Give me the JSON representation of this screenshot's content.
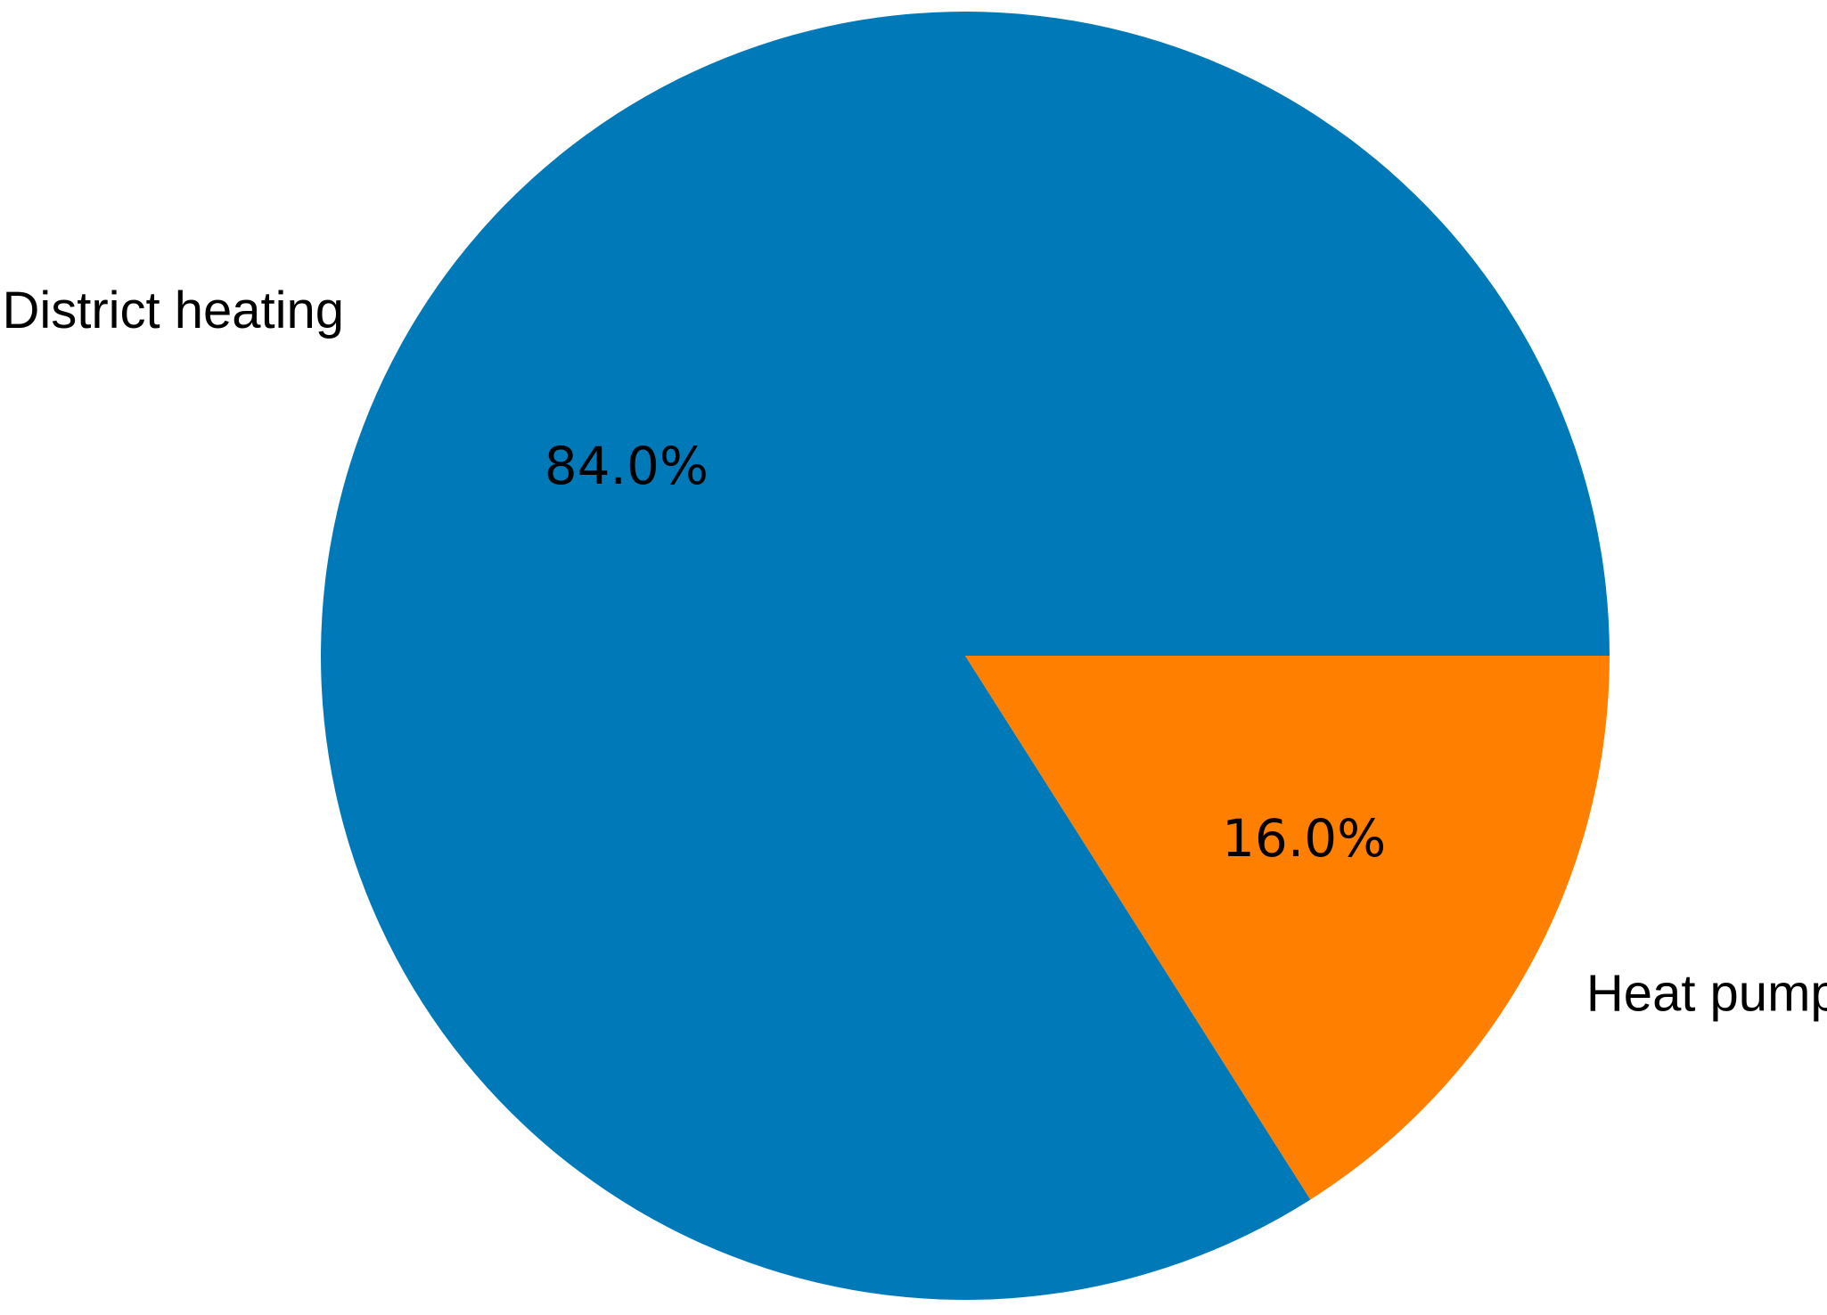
{
  "chart_data": {
    "type": "pie",
    "categories": [
      "District heating",
      "Heat pump"
    ],
    "values": [
      84.0,
      16.0
    ],
    "value_labels": [
      "84.0%",
      "16.0%"
    ],
    "colors": [
      "#0079b8",
      "#ff8000"
    ]
  }
}
